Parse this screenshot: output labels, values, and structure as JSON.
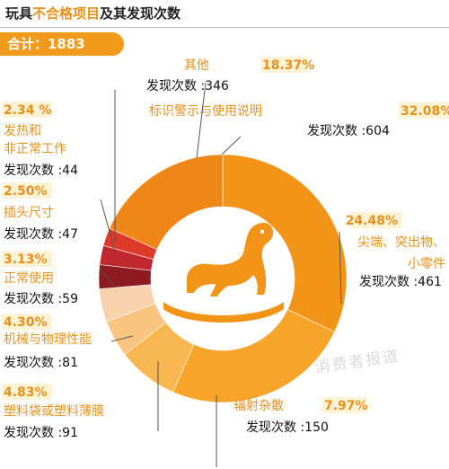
{
  "title": {
    "part_a": "玩具",
    "part_b": "不合格项目",
    "part_c": "及其发现次数"
  },
  "total": "合计：1883",
  "watermark": "消费者报道",
  "colors": {
    "accent": "#f19a1c",
    "label_pct": "#e8901a",
    "label_pct_bg": "#fff3d6"
  },
  "chart_data": {
    "type": "pie",
    "style": "donut",
    "order": "clockwise from top",
    "center_icon": "rocking-horse-icon",
    "slices": [
      {
        "id": "biaoshi",
        "label": "标识警示与使用说明",
        "percent": "32.08%",
        "value": 32.08,
        "count_text": "发现次数 :604",
        "color": "#f29418"
      },
      {
        "id": "jianduan",
        "label": "尖端、突出物、\n小零件",
        "percent": "24.48%",
        "value": 24.48,
        "count_text": "发现次数 :461",
        "color": "#f6a52a"
      },
      {
        "id": "fushe",
        "label": "辐射杂散",
        "percent": "7.97%",
        "value": 7.97,
        "count_text": "发现次数 :150",
        "color": "#f8b750"
      },
      {
        "id": "suliao",
        "label": "塑料袋或塑料薄膜",
        "percent": "4.83%",
        "value": 4.83,
        "count_text": "发现次数 :91",
        "color": "#f9c480"
      },
      {
        "id": "jixie",
        "label": "机械与物理性能",
        "percent": "4.30%",
        "value": 4.3,
        "count_text": "发现次数 :81",
        "color": "#f7d2ac"
      },
      {
        "id": "zhengchang",
        "label": "正常使用",
        "percent": "3.13%",
        "value": 3.13,
        "count_text": "发现次数 :59",
        "color": "#8e1a22"
      },
      {
        "id": "chatou",
        "label": "插头尺寸",
        "percent": "2.50%",
        "value": 2.5,
        "count_text": "发现次数 :47",
        "color": "#c0272f"
      },
      {
        "id": "fare",
        "label": "发热和\n非正常工作",
        "percent": "2.34 %",
        "value": 2.34,
        "count_text": "发现次数 :44",
        "color": "#dd3a2a"
      },
      {
        "id": "qita",
        "label": "其他",
        "percent": "18.37%",
        "value": 18.37,
        "count_text": "发现次数 :346",
        "color": "#ee8618"
      }
    ]
  }
}
